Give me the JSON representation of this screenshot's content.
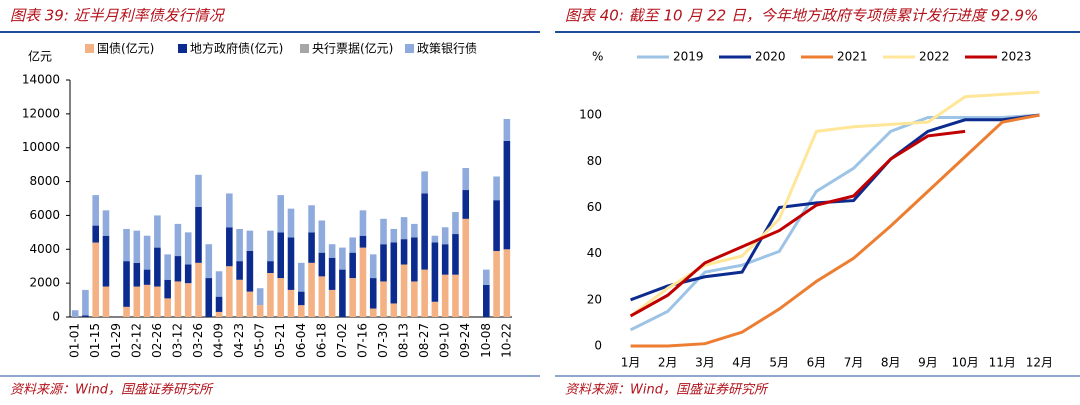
{
  "chart_data": [
    {
      "type": "bar",
      "stacked": true,
      "title": "图表 39: 近半月利率债发行情况",
      "source": "资料来源：Wind，国盛证券研究所",
      "y_label": "亿元",
      "categories": [
        "01-01",
        null,
        "01-15",
        null,
        "01-29",
        null,
        "02-12",
        null,
        "02-26",
        null,
        "03-12",
        null,
        "03-26",
        null,
        "04-09",
        null,
        "04-23",
        null,
        "05-07",
        null,
        "05-21",
        null,
        "06-04",
        null,
        "06-18",
        null,
        "07-02",
        null,
        "07-16",
        null,
        "07-30",
        null,
        "08-13",
        null,
        "08-27",
        null,
        "09-10",
        null,
        "09-24",
        null,
        "10-08",
        null,
        "10-22"
      ],
      "series": [
        {
          "name": "国债(亿元)",
          "color": "#f4b183",
          "values": [
            0,
            0,
            4400,
            1800,
            0,
            600,
            1800,
            1900,
            1800,
            1100,
            2100,
            2000,
            3200,
            0,
            300,
            3000,
            2200,
            1500,
            700,
            2600,
            2300,
            1600,
            700,
            3200,
            2400,
            1600,
            0,
            2300,
            4100,
            500,
            2100,
            800,
            3100,
            2100,
            2800,
            900,
            2500,
            2500,
            5800,
            0,
            0,
            3900,
            4000
          ]
        },
        {
          "name": "地方政府债(亿元)",
          "color": "#0c2b8f",
          "values": [
            0,
            100,
            1000,
            3000,
            0,
            2700,
            1400,
            900,
            2300,
            1100,
            1500,
            1100,
            3300,
            2300,
            900,
            2300,
            1100,
            2400,
            0,
            700,
            2700,
            3100,
            800,
            1800,
            1400,
            1900,
            2800,
            1500,
            700,
            1800,
            2200,
            3600,
            1500,
            2600,
            4500,
            3500,
            1800,
            2400,
            1700,
            0,
            1900,
            3000,
            6400
          ]
        },
        {
          "name": "央行票据(亿元)",
          "color": "#a6a6a6",
          "values": [
            0,
            0,
            0,
            0,
            0,
            0,
            0,
            0,
            0,
            0,
            0,
            0,
            0,
            0,
            0,
            0,
            0,
            0,
            0,
            0,
            0,
            0,
            0,
            0,
            0,
            0,
            0,
            0,
            0,
            0,
            0,
            0,
            0,
            0,
            0,
            0,
            0,
            0,
            0,
            0,
            0,
            0,
            0
          ]
        },
        {
          "name": "政策银行债",
          "color": "#8faadc",
          "values": [
            400,
            1500,
            1800,
            1500,
            0,
            1900,
            1900,
            2000,
            1900,
            1500,
            1900,
            1900,
            1900,
            2000,
            1500,
            2000,
            1900,
            1200,
            1000,
            1800,
            2200,
            1700,
            1700,
            1600,
            1900,
            800,
            1300,
            900,
            1500,
            1400,
            1500,
            800,
            1300,
            800,
            1300,
            400,
            1000,
            1300,
            1300,
            0,
            900,
            1400,
            1300
          ]
        }
      ],
      "ylim": [
        0,
        14000
      ],
      "yticks": [
        0,
        2000,
        4000,
        6000,
        8000,
        10000,
        12000,
        14000
      ],
      "grid": false,
      "legend": "top"
    },
    {
      "type": "line",
      "title": "图表 40: 截至 10 月 22 日，今年地方政府专项债累计发行进度 92.9%",
      "source": "资料来源：Wind，国盛证券研究所",
      "y_label": "%",
      "categories": [
        "1月",
        "2月",
        "3月",
        "4月",
        "5月",
        "6月",
        "7月",
        "8月",
        "9月",
        "10月",
        "11月",
        "12月"
      ],
      "series": [
        {
          "name": "2019",
          "color": "#9dc3e6",
          "values": [
            7,
            15,
            32,
            35,
            41,
            67,
            77,
            93,
            99,
            99,
            99,
            100
          ]
        },
        {
          "name": "2020",
          "color": "#0c2b8f",
          "values": [
            20,
            26,
            30,
            32,
            60,
            62,
            63,
            81,
            93,
            98,
            98,
            100
          ]
        },
        {
          "name": "2021",
          "color": "#ed7d31",
          "values": [
            0,
            0,
            1,
            6,
            16,
            28,
            38,
            52,
            67,
            82,
            97,
            100
          ]
        },
        {
          "name": "2022",
          "color": "#ffe699",
          "values": [
            13,
            25,
            35,
            39,
            55,
            93,
            95,
            96,
            97,
            108,
            109,
            110
          ]
        },
        {
          "name": "2023",
          "color": "#c00000",
          "values": [
            13,
            22,
            36,
            43,
            50,
            61,
            65,
            81,
            91,
            93,
            null,
            null
          ]
        }
      ],
      "ylim": [
        0,
        120
      ],
      "yticks": [
        0,
        20,
        40,
        60,
        80,
        100
      ],
      "grid": false,
      "legend": "top"
    }
  ]
}
